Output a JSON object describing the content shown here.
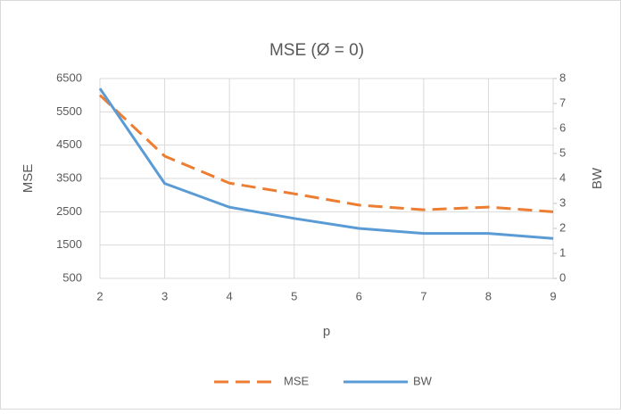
{
  "chart_data": {
    "type": "line",
    "title": "MSE (Ø = 0)",
    "x_label": "p",
    "y_label": "MSE",
    "y2_label": "BW",
    "x": [
      2,
      3,
      4,
      5,
      6,
      7,
      8,
      9
    ],
    "xlim": [
      2,
      9
    ],
    "xticks": [
      2,
      3,
      4,
      5,
      6,
      7,
      8,
      9
    ],
    "ylim": [
      500,
      6500
    ],
    "yticks": [
      500,
      1500,
      2500,
      3500,
      4500,
      5500,
      6500
    ],
    "y2lim": [
      0,
      8
    ],
    "y2ticks": [
      0,
      1,
      2,
      3,
      4,
      5,
      6,
      7,
      8
    ],
    "grid": true,
    "legend": "bottom",
    "series": [
      {
        "name": "MSE",
        "color": "#ed7d31",
        "dashed": true,
        "values": [
          6000,
          4170,
          3360,
          3040,
          2700,
          2560,
          2640,
          2500
        ]
      },
      {
        "name": "BW",
        "color": "#5b9bd5",
        "dashed": false,
        "axis": "y2",
        "values": [
          7.6,
          3.8,
          2.85,
          2.4,
          2.0,
          1.8,
          1.8,
          1.6
        ]
      }
    ]
  }
}
